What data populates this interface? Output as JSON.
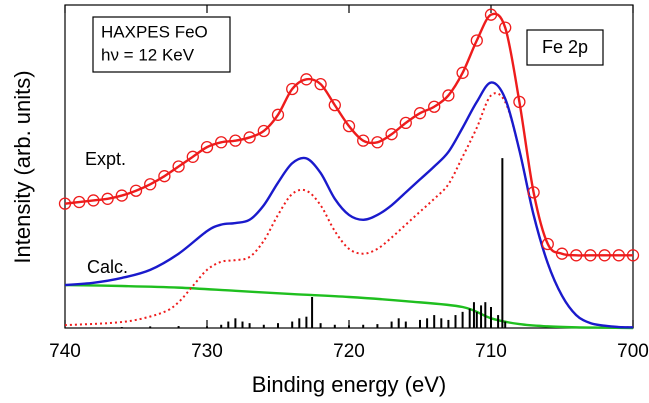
{
  "chart_data": {
    "type": "line",
    "xlabel": "Binding energy (eV)",
    "ylabel": "Intensity (arb. units)",
    "annotations": [
      "HAXPES FeO",
      "hν = 12 KeV",
      "Fe 2p"
    ],
    "xlim": [
      740,
      700
    ],
    "xticks": [
      740,
      730,
      720,
      710,
      700
    ],
    "ylim": [
      0,
      100
    ],
    "series": [
      {
        "name": "Expt.",
        "color": "#ee1c1c",
        "style": "markers-line",
        "x": [
          740,
          739,
          738,
          737,
          736,
          735,
          734,
          733,
          732,
          731,
          730,
          729,
          728,
          727,
          726,
          725,
          724,
          723,
          722,
          721,
          720,
          719,
          718,
          717,
          716,
          715,
          714,
          713,
          712,
          711,
          710,
          709,
          708,
          707,
          706,
          705,
          704,
          703,
          702,
          701,
          700
        ],
        "values": [
          38.5,
          39,
          39.5,
          40,
          41,
          42.5,
          44.5,
          47,
          50,
          53,
          56,
          57.5,
          58,
          59,
          61,
          66,
          74,
          77,
          75.5,
          69,
          62.5,
          58,
          57.5,
          60,
          63.5,
          66.5,
          68.5,
          72,
          79,
          89,
          97,
          93,
          70,
          42,
          26,
          23,
          22.5,
          22.5,
          22.5,
          22.5,
          22.5
        ]
      },
      {
        "name": "Calc.",
        "color": "#1a1acc",
        "style": "solid",
        "x": [
          740,
          738,
          736,
          734,
          732,
          730,
          729,
          728,
          727,
          726,
          725,
          724,
          723,
          722,
          721,
          720,
          719,
          718,
          717,
          716,
          715,
          714,
          713,
          712,
          711,
          710,
          709,
          708,
          707,
          706,
          705,
          704,
          703,
          702,
          701,
          700
        ],
        "values": [
          13.3,
          14,
          15.5,
          18,
          23,
          30,
          32,
          32.5,
          33.5,
          38,
          45,
          51,
          52.5,
          48,
          40,
          35,
          33.5,
          35,
          38,
          42,
          46,
          50,
          54.5,
          62,
          70,
          76,
          71,
          55,
          35,
          20,
          10,
          4,
          1.5,
          0.7,
          0.3,
          0.2
        ]
      },
      {
        "color": "#ee1c1c",
        "style": "dotted",
        "x": [
          740,
          737,
          735,
          733,
          732,
          731,
          730,
          729,
          728,
          727,
          726,
          725,
          724,
          723,
          722,
          721,
          720,
          719,
          718,
          717,
          716,
          715,
          714,
          713,
          712,
          711,
          710,
          709,
          708,
          707,
          706,
          705,
          704,
          703,
          702,
          701,
          700
        ],
        "values": [
          0.9,
          1.5,
          2.5,
          5,
          8,
          13,
          18,
          20.5,
          21,
          22,
          27,
          35,
          41.5,
          42.5,
          38,
          30,
          24.5,
          23,
          24.5,
          28,
          32,
          36,
          40,
          44.5,
          53,
          62,
          72,
          70,
          55,
          35,
          20,
          10,
          4,
          1.5,
          0.7,
          0.3,
          0.2
        ]
      },
      {
        "color": "#1fbf1f",
        "style": "solid",
        "x": [
          740,
          736,
          732,
          728,
          724,
          720,
          716,
          712,
          710,
          708,
          706,
          704,
          702,
          700
        ],
        "values": [
          13.3,
          13,
          12.5,
          11.5,
          10.5,
          9.6,
          8.3,
          6.5,
          3,
          1.2,
          0.5,
          0.2,
          0.1,
          0
        ]
      },
      {
        "color": "#000000",
        "style": "sticks",
        "x": [
          736,
          734,
          732,
          730,
          729,
          728.5,
          728,
          727.5,
          727,
          726,
          725,
          724,
          723.5,
          723,
          722.6,
          722,
          721,
          720,
          719,
          718,
          717,
          716.5,
          716,
          715,
          714.5,
          714,
          713.5,
          713,
          712.5,
          712,
          711.5,
          711.2,
          711,
          710.7,
          710.4,
          710,
          709.5,
          709.2,
          709
        ],
        "values": [
          0.3,
          0.5,
          0.6,
          0.5,
          1,
          2,
          3,
          2,
          1.5,
          1,
          1.5,
          2,
          3,
          3.5,
          9.6,
          1.5,
          1,
          0.8,
          1,
          1.2,
          2,
          3,
          2,
          2.5,
          3,
          4,
          3,
          2.5,
          4,
          5,
          6,
          8,
          5,
          7,
          8,
          6.5,
          4,
          52.6,
          2
        ]
      }
    ]
  }
}
